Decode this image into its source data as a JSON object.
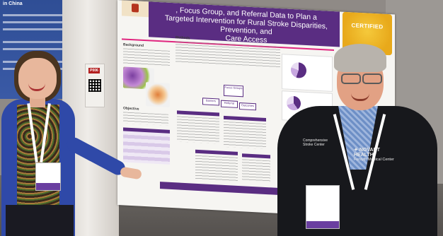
{
  "poster": {
    "title_line1": "Targeted Intervention for Rural Stroke Disparities, Prevention, and",
    "title_line2": "Care Access",
    "title_fragment": ", Focus Group, and Referral Data to Plan a",
    "cert_badge": "CERTIFIED",
    "sections": {
      "background": "Background",
      "methods": "Methods",
      "objective": "Objective"
    },
    "diagram_labels": [
      "Focus Groups",
      "Barriers",
      "Referral",
      "Outcomes"
    ]
  },
  "left_poster": {
    "title": "in China"
  },
  "side_tag": "P006",
  "people": {
    "man_jacket_left": "Comprehensive Stroke Center",
    "man_jacket_brand": "NOVANT HEALTH",
    "man_jacket_sub": "Forsyth Medical Center"
  },
  "colors": {
    "poster_purple": "#5a2d82",
    "accent_pink": "#e0257f",
    "badge_gold": "#f5c93b",
    "jacket_blue": "#2f49a8"
  }
}
